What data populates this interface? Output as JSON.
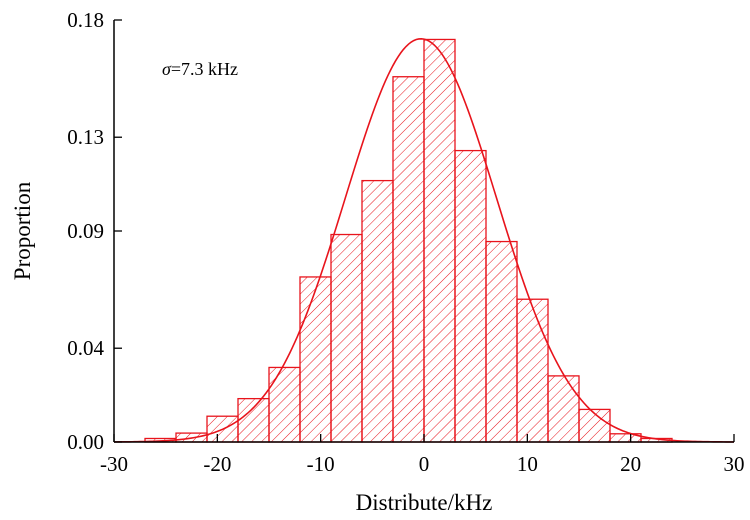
{
  "chart_data": {
    "type": "bar",
    "title": "",
    "xlabel": "Distribute/kHz",
    "ylabel": "Proportion",
    "xlim": [
      -30,
      30
    ],
    "ylim": [
      0,
      0.18
    ],
    "xticks": [
      "-30",
      "-20",
      "-10",
      "0",
      "10",
      "20",
      "30"
    ],
    "yticks": [
      "0.00",
      "0.04",
      "0.09",
      "0.13",
      "0.18"
    ],
    "bin_width": 3,
    "bin_starts": [
      -27,
      -24,
      -21,
      -18,
      -15,
      -12,
      -9,
      -6,
      -3,
      0,
      3,
      6,
      9,
      12,
      15,
      18,
      21
    ],
    "values": [
      0.0015,
      0.0038,
      0.011,
      0.0185,
      0.0318,
      0.0704,
      0.0885,
      0.1115,
      0.1558,
      0.1717,
      0.1243,
      0.0855,
      0.0609,
      0.0282,
      0.0139,
      0.0035,
      0.0015
    ],
    "fit": {
      "type": "gaussian",
      "mean": -0.3,
      "sigma": 7.3,
      "peak": 0.172
    },
    "annotation": {
      "symbol": "σ",
      "text": "=7.3 kHz"
    },
    "grid": false,
    "colors": {
      "series": "#e8141c",
      "axis": "#000000"
    }
  }
}
